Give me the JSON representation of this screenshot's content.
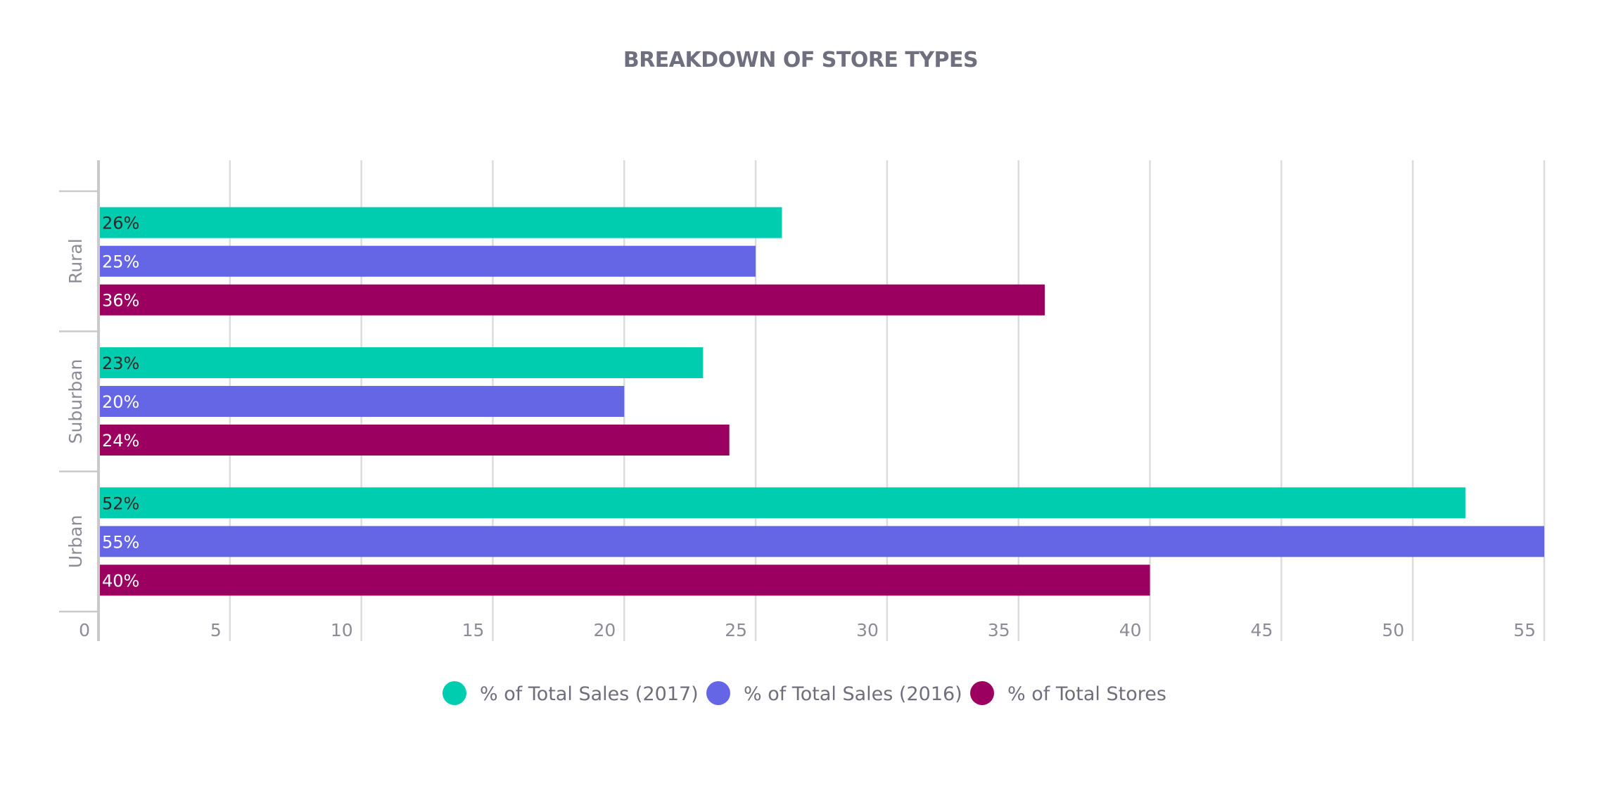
{
  "chart_data": {
    "type": "bar",
    "orientation": "horizontal",
    "title": "BREAKDOWN OF STORE TYPES",
    "categories": [
      "Rural",
      "Suburban",
      "Urban"
    ],
    "series": [
      {
        "name": "% of Total Sales (2017)",
        "color": "#00cdb0",
        "label_color": "#2a2a2a",
        "values": [
          26,
          23,
          52
        ],
        "labels": [
          "26%",
          "23%",
          "52%"
        ]
      },
      {
        "name": "% of Total Sales (2016)",
        "color": "#6466e6",
        "label_color": "#ffffff",
        "values": [
          25,
          20,
          55
        ],
        "labels": [
          "25%",
          "20%",
          "55%"
        ]
      },
      {
        "name": "% of Total Stores",
        "color": "#9b0060",
        "label_color": "#ffffff",
        "values": [
          36,
          24,
          40
        ],
        "labels": [
          "36%",
          "24%",
          "40%"
        ]
      }
    ],
    "xlim": [
      0,
      55
    ],
    "xticks": [
      0,
      5,
      10,
      15,
      20,
      25,
      30,
      35,
      40,
      45,
      50,
      55
    ],
    "grid": true,
    "legend_position": "bottom"
  }
}
